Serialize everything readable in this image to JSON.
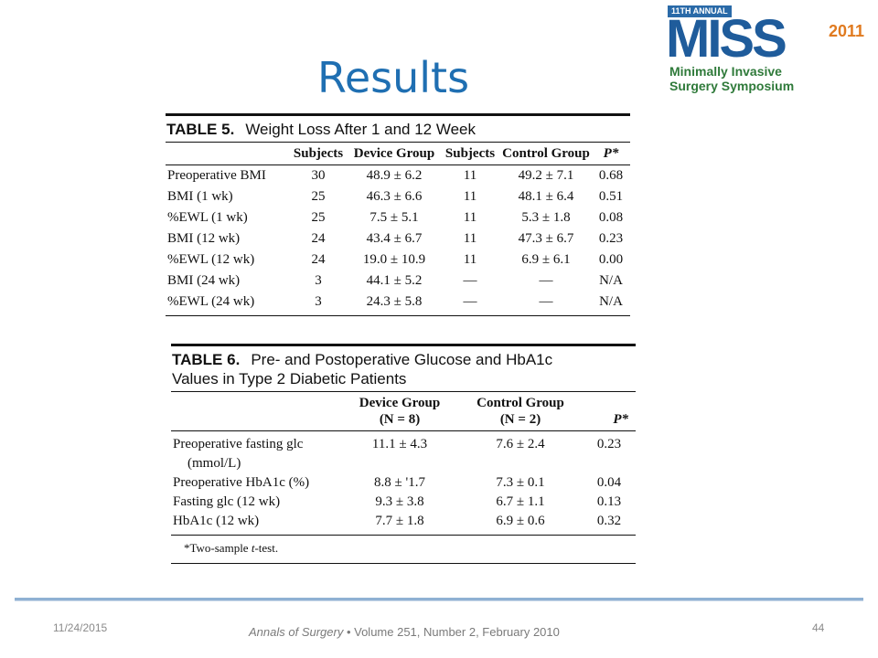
{
  "slide": {
    "title": "Results",
    "logo": {
      "badge": "11TH ANNUAL",
      "name": "MISS",
      "year": "2011",
      "line1": "Minimally Invasive",
      "line2": "Surgery Symposium"
    }
  },
  "table5": {
    "label": "TABLE 5.",
    "caption": "Weight Loss After 1 and 12 Week",
    "headers": [
      "",
      "Subjects",
      "Device Group",
      "Subjects",
      "Control Group",
      "P*"
    ],
    "rows": [
      [
        "Preoperative BMI",
        "30",
        "48.9 ± 6.2",
        "11",
        "49.2 ± 7.1",
        "0.68"
      ],
      [
        "BMI (1 wk)",
        "25",
        "46.3 ± 6.6",
        "11",
        "48.1 ± 6.4",
        "0.51"
      ],
      [
        "%EWL (1 wk)",
        "25",
        "7.5 ± 5.1",
        "11",
        "5.3 ± 1.8",
        "0.08"
      ],
      [
        "BMI (12 wk)",
        "24",
        "43.4 ± 6.7",
        "11",
        "47.3 ± 6.7",
        "0.23"
      ],
      [
        "%EWL (12 wk)",
        "24",
        "19.0 ± 10.9",
        "11",
        "6.9 ± 6.1",
        "0.00"
      ],
      [
        "BMI (24 wk)",
        "3",
        "44.1 ± 5.2",
        "—",
        "—",
        "N/A"
      ],
      [
        "%EWL (24 wk)",
        "3",
        "24.3 ± 5.8",
        "—",
        "—",
        "N/A"
      ]
    ]
  },
  "table6": {
    "label": "TABLE 6.",
    "caption_line1": "Pre- and Postoperative Glucose and HbA1c",
    "caption_line2": "Values in Type 2 Diabetic Patients",
    "headers": [
      "",
      "Device Group",
      "(N = 8)",
      "Control Group",
      "(N = 2)",
      "P*"
    ],
    "rows": [
      [
        "Preoperative fasting glc",
        "11.1 ± 4.3",
        "7.6 ± 2.4",
        "0.23"
      ],
      [
        "(mmol/L)",
        "",
        "",
        ""
      ],
      [
        "Preoperative HbA1c (%)",
        "8.8 ± '1.7",
        "7.3 ± 0.1",
        "0.04"
      ],
      [
        "Fasting glc (12 wk)",
        "9.3 ± 3.8",
        "6.7 ± 1.1",
        "0.13"
      ],
      [
        "HbA1c (12 wk)",
        "7.7 ± 1.8",
        "6.9 ± 0.6",
        "0.32"
      ]
    ],
    "footnote_prefix": "*Two-sample ",
    "footnote_italic": "t",
    "footnote_suffix": "-test."
  },
  "footer": {
    "date": "11/24/2015",
    "journal": "Annals of Surgery",
    "citation_rest": " • Volume 251, Number 2, February 2010",
    "page": "44"
  }
}
